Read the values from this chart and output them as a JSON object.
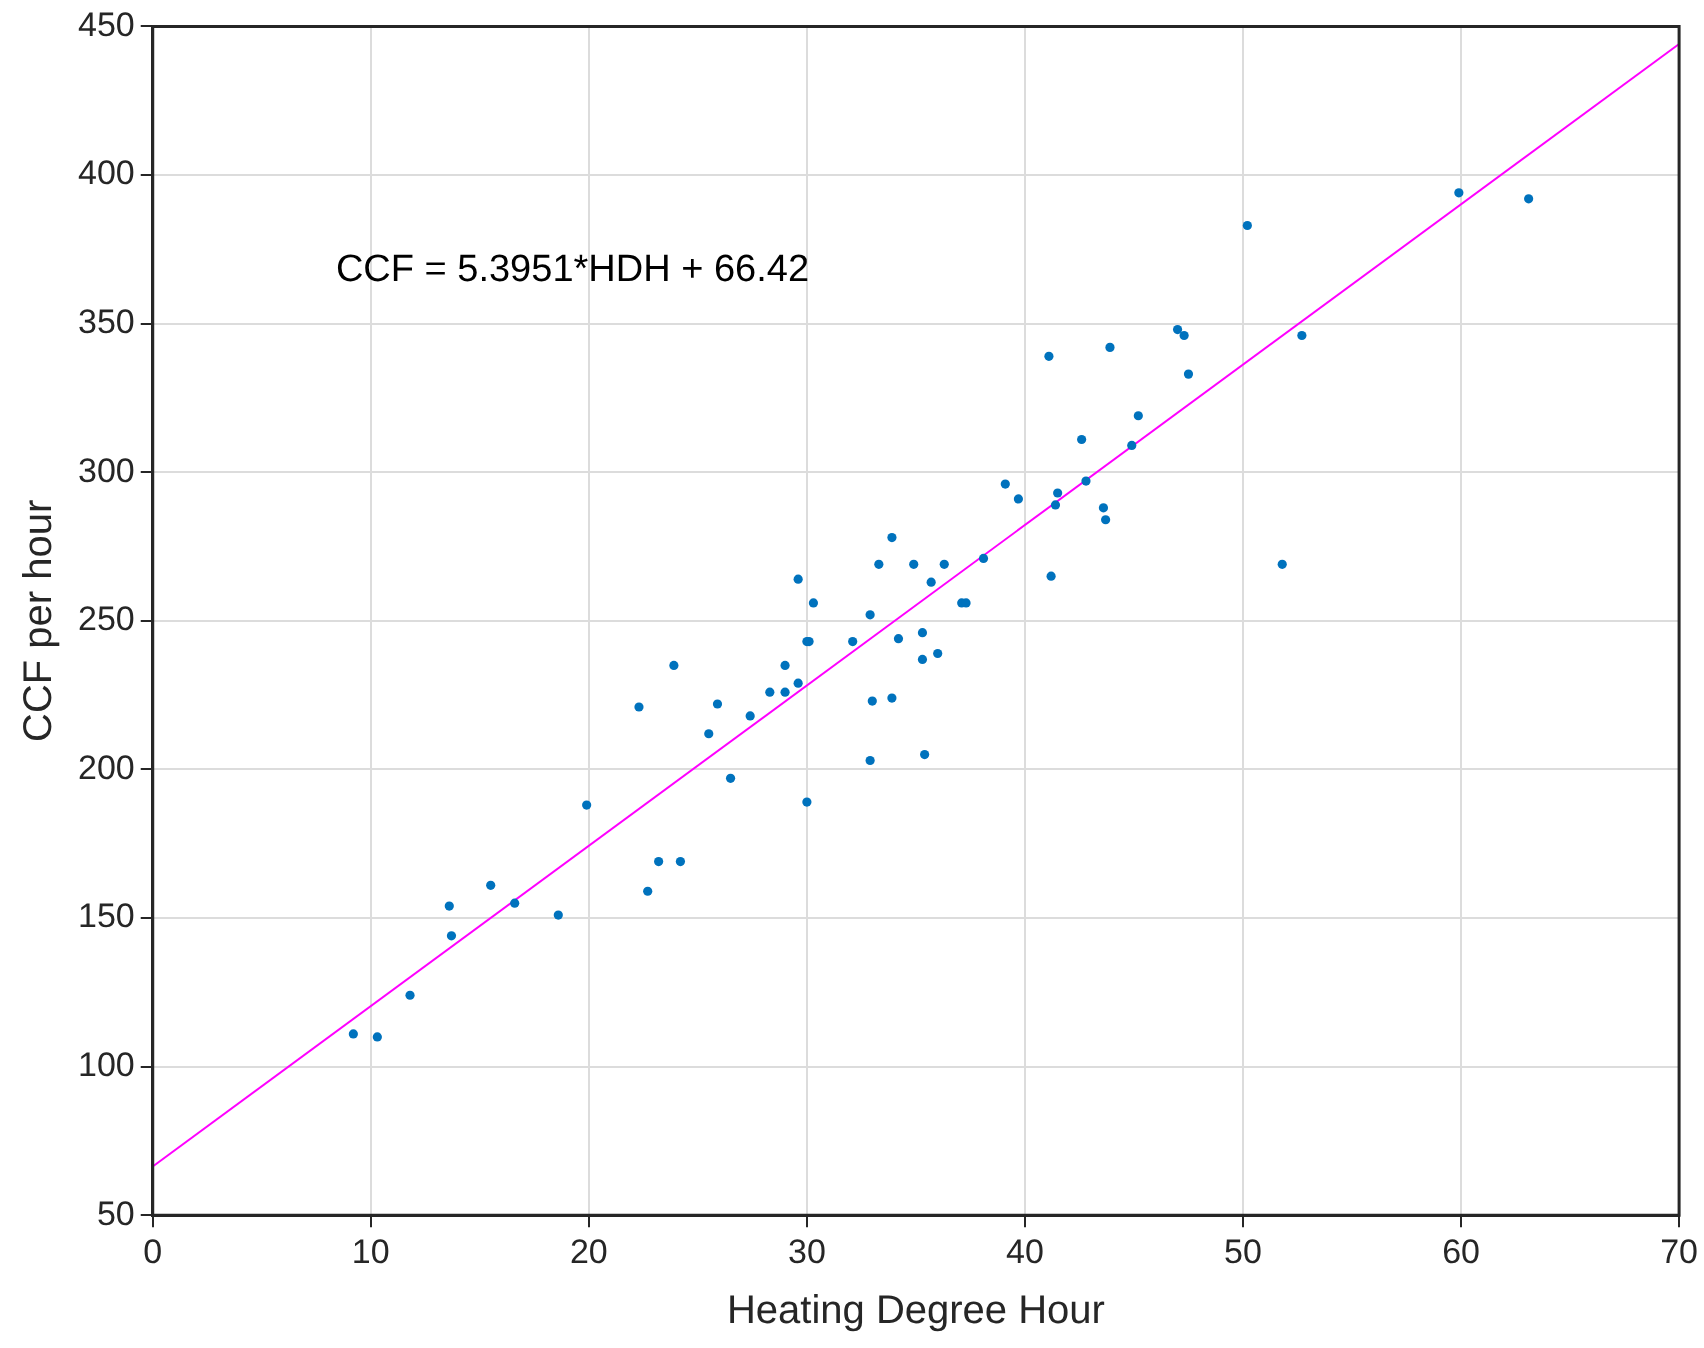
{
  "chart_data": {
    "type": "scatter",
    "xlabel": "Heating Degree Hour",
    "ylabel": "CCF per hour",
    "xlim": [
      0,
      70
    ],
    "xticks": [
      0,
      10,
      20,
      30,
      40,
      50,
      60,
      70
    ],
    "ylim": [
      50,
      450
    ],
    "yticks": [
      50,
      100,
      150,
      200,
      250,
      300,
      350,
      400,
      450
    ],
    "grid": true,
    "legend": false,
    "annotations": [
      "CCF = 5.3951*HDH + 66.42"
    ],
    "series": [
      {
        "color": "#0072bd",
        "marker": "circle",
        "x": [
          9.2,
          10.3,
          11.8,
          13.6,
          13.7,
          15.5,
          16.6,
          18.6,
          19.9,
          22.3,
          22.7,
          23.2,
          23.9,
          24.2,
          25.5,
          25.9,
          26.5,
          27.4,
          28.3,
          29.0,
          29.0,
          29.6,
          29.6,
          30.0,
          30.1,
          30.0,
          30.3,
          32.1,
          32.9,
          33.0,
          32.9,
          33.3,
          33.9,
          33.9,
          34.2,
          34.9,
          35.3,
          35.3,
          35.4,
          35.7,
          36.0,
          36.3,
          37.1,
          37.3,
          38.1,
          39.1,
          39.7,
          41.1,
          41.2,
          41.4,
          41.5,
          42.6,
          42.8,
          43.6,
          43.7,
          43.9,
          44.9,
          45.2,
          47.0,
          47.3,
          47.5,
          50.2,
          51.8,
          52.7,
          59.9,
          63.1
        ],
        "values": [
          111,
          110,
          124,
          154,
          144,
          161,
          155,
          151,
          188,
          221,
          159,
          169,
          235,
          169,
          212,
          222,
          197,
          218,
          226,
          226,
          235,
          264,
          229,
          243,
          243,
          189,
          256,
          243,
          252,
          223,
          203,
          269,
          278,
          224,
          244,
          269,
          246,
          237,
          205,
          263,
          239,
          269,
          256,
          256,
          271,
          296,
          291,
          339,
          265,
          289,
          293,
          311,
          297,
          288,
          284,
          342,
          309,
          319,
          348,
          346,
          333,
          383,
          269,
          346,
          394,
          392
        ]
      },
      {
        "type": "line",
        "color": "#ff00ff",
        "marker": "none",
        "line_style": "solid",
        "x": [
          0,
          70
        ],
        "values": [
          66.4,
          444.1
        ]
      }
    ]
  }
}
